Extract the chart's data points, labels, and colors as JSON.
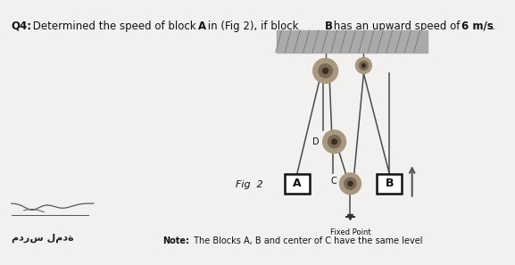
{
  "bg_color": "#f2f1ef",
  "title_parts": [
    {
      "text": "Q4:",
      "bold": true,
      "size": 8.5
    },
    {
      "text": " Determined the speed of block ",
      "bold": false,
      "size": 8.5
    },
    {
      "text": "A",
      "bold": true,
      "size": 8.5
    },
    {
      "text": " in (Fig 2), if block ",
      "bold": false,
      "size": 8.5
    },
    {
      "text": "B",
      "bold": true,
      "size": 8.5
    },
    {
      "text": " has an upward speed of ",
      "bold": false,
      "size": 8.5
    },
    {
      "text": "6 m/s",
      "bold": true,
      "size": 8.5
    },
    {
      "text": ".",
      "bold": false,
      "size": 8.5
    }
  ],
  "fig_label": "Fig  2",
  "note_text": "Note: The Blocks A, B and center of C have the same level",
  "note_bold_prefix": "Note:",
  "fixed_point_label": "Fixed Point",
  "D_label": "D",
  "C_label": "C",
  "A_label": "A",
  "B_label": "B",
  "rope_color": "#4a4a4a",
  "block_fill": "#ffffff",
  "block_edge": "#111111",
  "pulley_outer": "#a89880",
  "pulley_mid": "#7a6858",
  "pulley_inner": "#3a3020",
  "ceiling_fill": "#aaaaaa",
  "ceiling_hatch": "#777777",
  "arrow_color": "#555555",
  "text_color": "#111111"
}
